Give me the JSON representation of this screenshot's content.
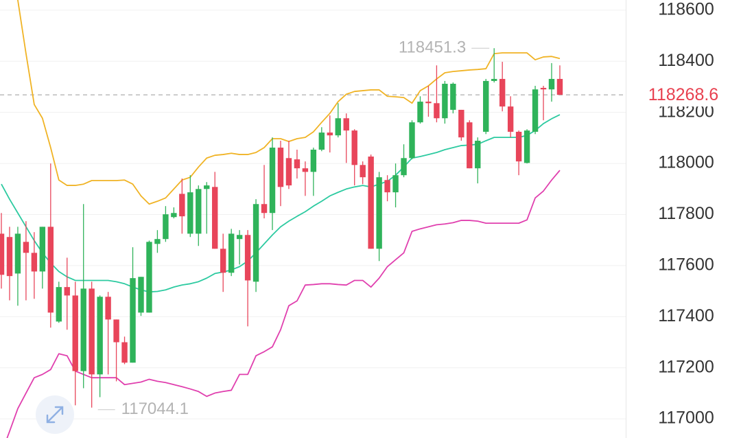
{
  "chart_data": {
    "type": "candlestick",
    "up_color": "#2fb35a",
    "down_color": "#e8455a",
    "ylim": [
      116925,
      118640
    ],
    "yticks": [
      117000,
      117200,
      117400,
      117600,
      117800,
      118000,
      118200,
      118400,
      118600
    ],
    "grid": true,
    "open": [
      117725,
      117712,
      117569,
      117693,
      117650,
      117577,
      117752,
      117381,
      117516,
      117483,
      117187,
      117510,
      117174,
      117478,
      117389,
      117300,
      117220,
      117416,
      117416,
      117685,
      117704,
      117790,
      117881,
      117725,
      117725,
      117900,
      117908,
      117666,
      117572,
      117704,
      117720,
      117537,
      117841,
      117806,
      118062,
      118021,
      118016,
      117981,
      117967,
      118054,
      118121,
      118110,
      118177,
      118129,
      117994,
      118027,
      117666,
      117935,
      117887,
      117954,
      118021,
      118161,
      118242,
      118236,
      118177,
      118210,
      118210,
      118161,
      117981,
      118124,
      118323,
      118331,
      118223,
      118124,
      118002,
      118124,
      118296,
      118290,
      118331
    ],
    "high": [
      117806,
      117752,
      117752,
      117774,
      117731,
      117752,
      118000,
      117537,
      117631,
      117537,
      117841,
      117537,
      117483,
      117497,
      117389,
      117322,
      117672,
      117556,
      117698,
      117739,
      117833,
      117828,
      117941,
      117954,
      117914,
      117927,
      117967,
      117725,
      117744,
      117739,
      117739,
      117860,
      117994,
      118102,
      118089,
      118089,
      118054,
      118008,
      118062,
      118142,
      118188,
      118236,
      118196,
      118134,
      118008,
      118035,
      117967,
      117954,
      118000,
      118075,
      118169,
      118263,
      118304,
      118384,
      118323,
      118317,
      118210,
      118169,
      118102,
      118331,
      118451.3,
      118398,
      118263,
      118129,
      118134,
      118304,
      118304,
      118393,
      118384
    ],
    "low": [
      117510,
      117464,
      117443,
      117464,
      117470,
      117510,
      117357,
      117376,
      117349,
      117053,
      117120,
      117044.1,
      117085,
      117174,
      117147,
      117214,
      117220,
      117403,
      117416,
      117650,
      117693,
      117785,
      117725,
      117712,
      117677,
      117725,
      117666,
      117497,
      117559,
      117604,
      117362,
      117497,
      117785,
      117739,
      117833,
      117900,
      117941,
      117873,
      117873,
      118048,
      118043,
      118102,
      118002,
      117914,
      117919,
      117666,
      117618,
      117852,
      117828,
      117946,
      118016,
      118156,
      118183,
      118161,
      118156,
      118196,
      118089,
      117981,
      117922,
      118115,
      118317,
      118204,
      118102,
      117954,
      118000,
      118115,
      118169,
      118242,
      118268.6
    ],
    "close": [
      117564,
      117559,
      117725,
      117650,
      117577,
      117752,
      117416,
      117516,
      117483,
      117187,
      117510,
      117174,
      117478,
      117389,
      117300,
      117220,
      117551,
      117556,
      117693,
      117704,
      117801,
      117806,
      117793,
      117887,
      117900,
      117914,
      117666,
      117572,
      117725,
      117720,
      117542,
      117841,
      117806,
      118062,
      117908,
      117914,
      117981,
      117967,
      118054,
      118121,
      118110,
      118177,
      118129,
      117994,
      117946,
      117666,
      117946,
      117887,
      117954,
      118021,
      118161,
      118242,
      118236,
      118177,
      118312,
      118312,
      118102,
      117981,
      118089,
      118323,
      118331,
      118223,
      118124,
      118008,
      118129,
      118290,
      118290,
      118331,
      118268.6
    ],
    "overlays": [
      {
        "color": "#f0b324",
        "values": [
          118815,
          118735,
          118640,
          118430,
          118231,
          118177,
          118062,
          117935,
          117914,
          117914,
          117919,
          117933,
          117933,
          117933,
          117933,
          117935,
          117919,
          117873,
          117841,
          117852,
          117865,
          117900,
          117935,
          117946,
          117986,
          118021,
          118032,
          118035,
          118040,
          118035,
          118035,
          118043,
          118062,
          118097,
          118097,
          118086,
          118097,
          118102,
          118124,
          118161,
          118196,
          118242,
          118271,
          118282,
          118285,
          118288,
          118288,
          118263,
          118261,
          118258,
          118236,
          118285,
          118304,
          118331,
          118355,
          118360,
          118363,
          118366,
          118368,
          118371,
          118430,
          118433,
          118433,
          118433,
          118433,
          118406,
          118417,
          118419,
          118411
        ]
      },
      {
        "color": "#2ccaa0",
        "values": [
          117919,
          117860,
          117806,
          117752,
          117698,
          117650,
          117610,
          117577,
          117556,
          117542,
          117542,
          117542,
          117542,
          117542,
          117537,
          117529,
          117516,
          117505,
          117497,
          117499,
          117505,
          117516,
          117524,
          117529,
          117537,
          117551,
          117569,
          117575,
          117583,
          117596,
          117618,
          117650,
          117685,
          117720,
          117752,
          117774,
          117793,
          117811,
          117833,
          117852,
          117873,
          117887,
          117900,
          117908,
          117914,
          117908,
          117919,
          117930,
          117954,
          117986,
          118021,
          118027,
          118035,
          118043,
          118054,
          118062,
          118070,
          118072,
          118075,
          118089,
          118102,
          118102,
          118102,
          118102,
          118110,
          118129,
          118156,
          118175,
          118191
        ]
      },
      {
        "color": "#e03fae",
        "values": [
          116865,
          116951,
          117040,
          117101,
          117161,
          117174,
          117193,
          117255,
          117247,
          117187,
          117174,
          117161,
          117161,
          117161,
          117161,
          117134,
          117139,
          117144,
          117155,
          117147,
          117142,
          117134,
          117126,
          117117,
          117107,
          117088,
          117101,
          117107,
          117112,
          117174,
          117174,
          117247,
          117263,
          117282,
          117349,
          117443,
          117462,
          117524,
          117526,
          117529,
          117529,
          117526,
          117524,
          117542,
          117542,
          117516,
          117551,
          117596,
          117623,
          117650,
          117734,
          117744,
          117752,
          117760,
          117763,
          117768,
          117777,
          117777,
          117774,
          117766,
          117766,
          117766,
          117766,
          117766,
          117779,
          117865,
          117892,
          117935,
          117973
        ]
      }
    ]
  }
}
